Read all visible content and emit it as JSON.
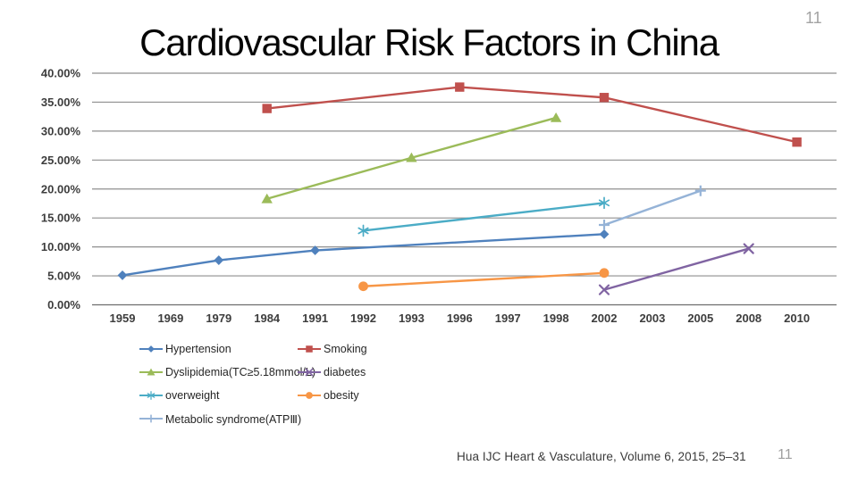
{
  "slide": {
    "title": "Cardiovascular Risk Factors in China",
    "page_number_top": "11",
    "page_number_bottom": "11"
  },
  "footer": {
    "citation": "Hua IJC Heart & Vasculature, Volume 6, 2015, 25–31"
  },
  "chart_data": {
    "type": "line",
    "title": "Cardiovascular Risk Factors in China",
    "xlabel": "",
    "ylabel": "",
    "grid": true,
    "legend_position": "bottom",
    "legend_columns": 2,
    "categories": [
      "1959",
      "1969",
      "1979",
      "1984",
      "1991",
      "1992",
      "1993",
      "1996",
      "1997",
      "1998",
      "2002",
      "2003",
      "2005",
      "2008",
      "2010"
    ],
    "y_axis": {
      "min": 0,
      "max": 40,
      "step": 5,
      "tick_labels": [
        "40.00%",
        "35.00%",
        "30.00%",
        "25.00%",
        "20.00%",
        "15.00%",
        "10.00%",
        "5.00%",
        "0.00%"
      ]
    },
    "series": [
      {
        "name": "Hypertension",
        "color": "#4F81BD",
        "marker": "diamond",
        "points": [
          [
            "1959",
            5.1
          ],
          [
            "1979",
            7.7
          ],
          [
            "1991",
            9.4
          ],
          [
            "2002",
            12.2
          ]
        ]
      },
      {
        "name": "Smoking",
        "color": "#C0504D",
        "marker": "square",
        "points": [
          [
            "1984",
            33.9
          ],
          [
            "1996",
            37.6
          ],
          [
            "2002",
            35.8
          ],
          [
            "2010",
            28.1
          ]
        ]
      },
      {
        "name": "Dyslipidemia(TC≥5.18mmol/L)",
        "color": "#9BBB59",
        "marker": "triangle",
        "points": [
          [
            "1984",
            18.3
          ],
          [
            "1993",
            25.4
          ],
          [
            "1998",
            32.3
          ]
        ]
      },
      {
        "name": "diabetes",
        "color": "#8064A2",
        "marker": "x",
        "points": [
          [
            "2002",
            2.6
          ],
          [
            "2008",
            9.7
          ]
        ]
      },
      {
        "name": "overweight",
        "color": "#4BACC6",
        "marker": "asterisk",
        "points": [
          [
            "1992",
            12.8
          ],
          [
            "2002",
            17.6
          ]
        ]
      },
      {
        "name": "obesity",
        "color": "#F79646",
        "marker": "circle",
        "points": [
          [
            "1992",
            3.2
          ],
          [
            "2002",
            5.5
          ]
        ]
      },
      {
        "name": "Metabolic syndrome(ATPⅢ)",
        "color": "#95B3D7",
        "marker": "plus",
        "points": [
          [
            "2002",
            13.8
          ],
          [
            "2005",
            19.7
          ]
        ]
      }
    ]
  }
}
